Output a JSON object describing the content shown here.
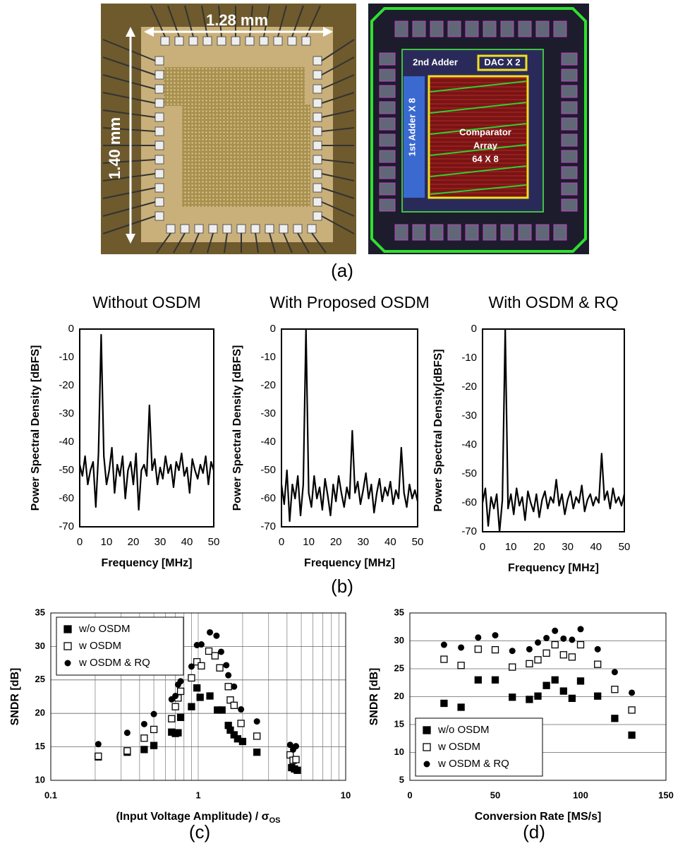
{
  "figure": {
    "die": {
      "width_label": "1.28 mm",
      "height_label": "1.40 mm"
    },
    "layout": {
      "second_adder": "2nd Adder",
      "dac": "DAC X 2",
      "first_adder": "1st Adder X 8",
      "array_lines": [
        "Comparator",
        "Array",
        "64 X 8"
      ]
    },
    "captions": [
      "(a)",
      "(b)",
      "(c)",
      "(d)"
    ]
  },
  "chart_data": [
    {
      "type": "line",
      "title": "Without OSDM",
      "xlabel": "Frequency [MHz]",
      "ylabel": "Power Spectral Density [dBFS]",
      "xlim": [
        0,
        50
      ],
      "xticks": [
        0,
        10,
        20,
        30,
        40,
        50
      ],
      "ylim": [
        -70,
        0
      ],
      "yticks": [
        -70,
        -60,
        -50,
        -40,
        -30,
        -20,
        -10,
        0
      ],
      "x": [
        0,
        1,
        2,
        3,
        4,
        5,
        6,
        7,
        8,
        9,
        10,
        11,
        12,
        13,
        14,
        15,
        16,
        17,
        18,
        19,
        20,
        21,
        22,
        23,
        24,
        25,
        26,
        27,
        28,
        29,
        30,
        31,
        32,
        33,
        34,
        35,
        36,
        37,
        38,
        39,
        40,
        41,
        42,
        43,
        44,
        45,
        46,
        47,
        48,
        49,
        50
      ],
      "series": [
        {
          "color": "#000000",
          "values": [
            -48,
            -52,
            -45,
            -55,
            -50,
            -47,
            -63,
            -44,
            -2,
            -45,
            -55,
            -50,
            -42,
            -58,
            -48,
            -52,
            -45,
            -60,
            -50,
            -47,
            -55,
            -44,
            -64,
            -50,
            -48,
            -52,
            -27,
            -50,
            -46,
            -55,
            -49,
            -53,
            -45,
            -51,
            -48,
            -56,
            -47,
            -50,
            -44,
            -52,
            -49,
            -58,
            -46,
            -50,
            -53,
            -48,
            -51,
            -45,
            -55,
            -47,
            -50
          ]
        }
      ]
    },
    {
      "type": "line",
      "title": "With Proposed OSDM",
      "xlabel": "Frequency [MHz]",
      "ylabel": "Power Spectral Density [dBFS]",
      "xlim": [
        0,
        50
      ],
      "xticks": [
        0,
        10,
        20,
        30,
        40,
        50
      ],
      "ylim": [
        -70,
        0
      ],
      "yticks": [
        -70,
        -60,
        -50,
        -40,
        -30,
        -20,
        -10,
        0
      ],
      "x": [
        0,
        1,
        2,
        3,
        4,
        5,
        6,
        7,
        8,
        9,
        10,
        11,
        12,
        13,
        14,
        15,
        16,
        17,
        18,
        19,
        20,
        21,
        22,
        23,
        24,
        25,
        26,
        27,
        28,
        29,
        30,
        31,
        32,
        33,
        34,
        35,
        36,
        37,
        38,
        39,
        40,
        41,
        42,
        43,
        44,
        45,
        46,
        47,
        48,
        49,
        50
      ],
      "series": [
        {
          "color": "#000000",
          "values": [
            -55,
            -62,
            -50,
            -68,
            -55,
            -60,
            -52,
            -66,
            -55,
            0,
            -58,
            -63,
            -52,
            -60,
            -56,
            -64,
            -53,
            -59,
            -66,
            -55,
            -61,
            -52,
            -58,
            -63,
            -56,
            -60,
            -36,
            -58,
            -54,
            -62,
            -57,
            -51,
            -60,
            -55,
            -65,
            -58,
            -53,
            -61,
            -56,
            -59,
            -54,
            -62,
            -57,
            -60,
            -42,
            -58,
            -63,
            -55,
            -60,
            -57,
            -61
          ]
        }
      ]
    },
    {
      "type": "line",
      "title": "With OSDM & RQ",
      "xlabel": "Frequency [MHz]",
      "ylabel": "Power Spectral Density[dBFS]",
      "xlim": [
        0,
        50
      ],
      "xticks": [
        0,
        10,
        20,
        30,
        40,
        50
      ],
      "ylim": [
        -70,
        0
      ],
      "yticks": [
        -70,
        -60,
        -50,
        -40,
        -30,
        -20,
        -10,
        0
      ],
      "x": [
        0,
        1,
        2,
        3,
        4,
        5,
        6,
        7,
        8,
        9,
        10,
        11,
        12,
        13,
        14,
        15,
        16,
        17,
        18,
        19,
        20,
        21,
        22,
        23,
        24,
        25,
        26,
        27,
        28,
        29,
        30,
        31,
        32,
        33,
        34,
        35,
        36,
        37,
        38,
        39,
        40,
        41,
        42,
        43,
        44,
        45,
        46,
        47,
        48,
        49,
        50
      ],
      "series": [
        {
          "color": "#000000",
          "values": [
            -60,
            -55,
            -68,
            -58,
            -62,
            -57,
            -70,
            -59,
            0,
            -62,
            -57,
            -64,
            -55,
            -61,
            -58,
            -66,
            -56,
            -60,
            -63,
            -57,
            -65,
            -59,
            -56,
            -62,
            -58,
            -60,
            -52,
            -61,
            -57,
            -64,
            -59,
            -56,
            -62,
            -58,
            -60,
            -54,
            -63,
            -59,
            -57,
            -61,
            -58,
            -60,
            -43,
            -59,
            -56,
            -62,
            -55,
            -60,
            -58,
            -61,
            -57
          ]
        }
      ]
    },
    {
      "type": "scatter",
      "xscale": "log",
      "grid": "both",
      "legend": "upper left",
      "xlabel": "(Input Voltage Amplitude) / σ",
      "xlabel_sub": "OS",
      "ylabel": "SNDR [dB]",
      "xlim": [
        0.1,
        10
      ],
      "xticks": [
        0.1,
        1,
        10
      ],
      "ylim": [
        10,
        35
      ],
      "yticks": [
        10,
        15,
        20,
        25,
        30,
        35
      ],
      "series": [
        {
          "name": "w/o OSDM",
          "marker": "square",
          "color": "#000000",
          "x": [
            0.21,
            0.33,
            0.43,
            0.5,
            0.66,
            0.7,
            0.73,
            0.76,
            0.9,
            0.98,
            1.03,
            1.2,
            1.35,
            1.45,
            1.6,
            1.65,
            1.75,
            1.85,
            2.0,
            2.5,
            4.3,
            4.5,
            4.7
          ],
          "values": [
            13.5,
            14.2,
            14.6,
            15.2,
            17.2,
            17,
            17.1,
            19.4,
            21,
            23.8,
            22.4,
            22.6,
            20.5,
            20.5,
            18.2,
            17.5,
            16.8,
            16.2,
            15.8,
            14.2,
            11.9,
            11.7,
            11.5
          ]
        },
        {
          "name": "w OSDM",
          "marker": "open-square",
          "color": "#000000",
          "x": [
            0.21,
            0.33,
            0.43,
            0.5,
            0.66,
            0.7,
            0.73,
            0.76,
            0.9,
            0.98,
            1.05,
            1.18,
            1.3,
            1.4,
            1.6,
            1.65,
            1.75,
            1.95,
            2.5,
            4.2,
            4.4,
            4.6
          ],
          "values": [
            13.6,
            14.4,
            16.3,
            17.6,
            19.2,
            21,
            22.3,
            23.3,
            25.3,
            27.7,
            27.1,
            29.3,
            28.6,
            26.8,
            24,
            22,
            21.2,
            18.5,
            16.6,
            13.8,
            13,
            13.1
          ]
        },
        {
          "name": "w OSDM & RQ",
          "marker": "circle",
          "color": "#000000",
          "x": [
            0.21,
            0.33,
            0.43,
            0.5,
            0.66,
            0.7,
            0.73,
            0.76,
            0.9,
            0.98,
            1.05,
            1.2,
            1.33,
            1.43,
            1.55,
            1.6,
            1.75,
            1.95,
            2.5,
            4.2,
            4.4,
            4.6
          ],
          "values": [
            15.4,
            17.1,
            18.4,
            19.9,
            22.1,
            22.6,
            24.3,
            24.8,
            27,
            30.2,
            30.3,
            32.1,
            31.6,
            29.2,
            27.2,
            25.7,
            24,
            20.6,
            18.8,
            15.3,
            14.6,
            15.1
          ]
        }
      ]
    },
    {
      "type": "scatter",
      "grid": "y",
      "legend": "lower left",
      "xlabel": "Conversion Rate [MS/s]",
      "ylabel": "SNDR [dB]",
      "xlim": [
        0,
        150
      ],
      "xticks": [
        0,
        50,
        100,
        150
      ],
      "ylim": [
        5,
        35
      ],
      "yticks": [
        5,
        10,
        15,
        20,
        25,
        30,
        35
      ],
      "series": [
        {
          "name": "w/o OSDM",
          "marker": "square",
          "color": "#000000",
          "x": [
            20,
            30,
            40,
            50,
            60,
            70,
            75,
            80,
            85,
            90,
            95,
            100,
            110,
            120,
            130
          ],
          "values": [
            18.8,
            18.1,
            23,
            23,
            19.9,
            19.5,
            20.1,
            22,
            23,
            21,
            19.7,
            22.8,
            20.1,
            16.1,
            13.1
          ]
        },
        {
          "name": "w OSDM",
          "marker": "open-square",
          "color": "#000000",
          "x": [
            20,
            30,
            40,
            50,
            60,
            70,
            75,
            80,
            85,
            90,
            95,
            100,
            110,
            120,
            130
          ],
          "values": [
            26.7,
            25.6,
            28.5,
            28.4,
            25.3,
            25.9,
            26.6,
            27.8,
            29.3,
            27.5,
            27.1,
            29.3,
            25.8,
            21.3,
            17.6
          ]
        },
        {
          "name": "w OSDM & RQ",
          "marker": "circle",
          "color": "#000000",
          "x": [
            20,
            30,
            40,
            50,
            60,
            70,
            75,
            80,
            85,
            90,
            95,
            100,
            110,
            120,
            130
          ],
          "values": [
            29.3,
            28.8,
            30.6,
            31,
            28.2,
            28.5,
            29.7,
            30.5,
            31.8,
            30.4,
            30.2,
            32.1,
            28.5,
            24.4,
            20.7
          ]
        }
      ]
    }
  ]
}
